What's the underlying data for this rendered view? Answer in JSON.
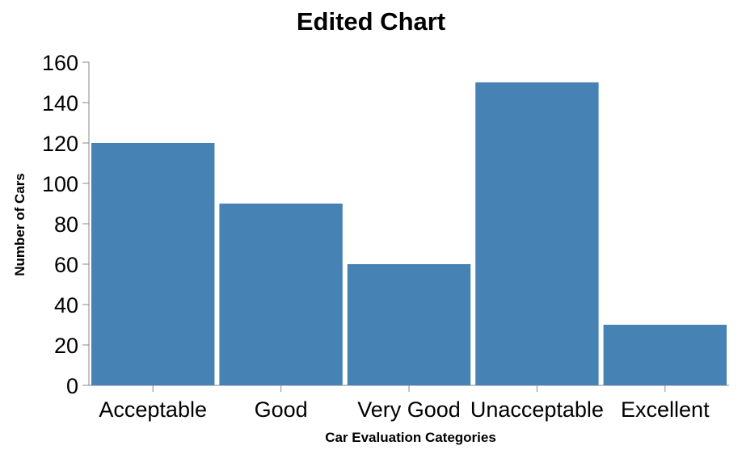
{
  "chart_data": {
    "type": "bar",
    "title": "Edited Chart",
    "xlabel": "Car Evaluation Categories",
    "ylabel": "Number of Cars",
    "categories": [
      "Acceptable",
      "Good",
      "Very Good",
      "Unacceptable",
      "Excellent"
    ],
    "values": [
      120,
      90,
      60,
      150,
      30
    ],
    "ylim": [
      0,
      160
    ],
    "yticks": [
      0,
      20,
      40,
      60,
      80,
      100,
      120,
      140,
      160
    ],
    "grid": false,
    "colors": {
      "bar": "#4682b4",
      "axis": "#888888"
    }
  }
}
